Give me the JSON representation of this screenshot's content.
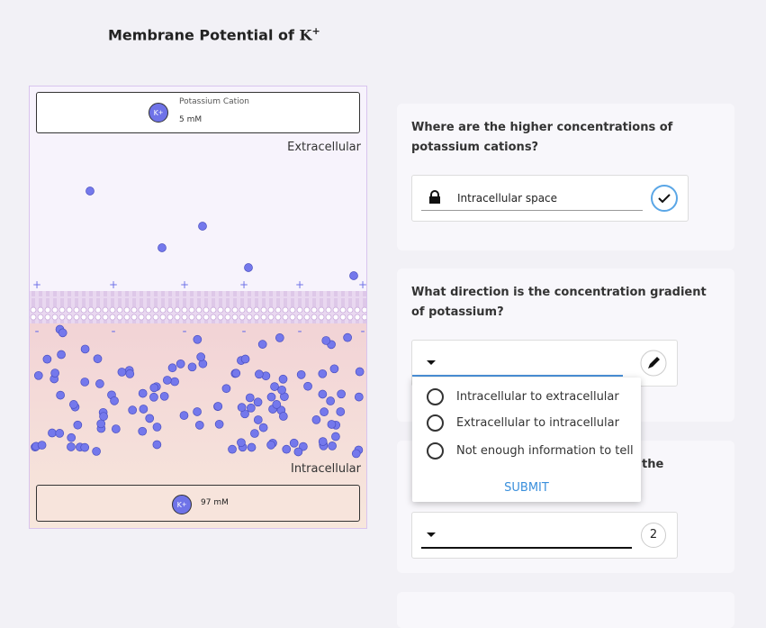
{
  "header": {
    "title": "Membrane Potential of",
    "ion": "K",
    "charge": "+"
  },
  "panel": {
    "top_label": "Potassium Cation",
    "top_conc": "5 mM",
    "outside": "Extracellular",
    "inside": "Intracellular",
    "bottom_conc": "97 mM",
    "plus": "+",
    "minus": "-"
  },
  "questions": [
    {
      "text": "Where are the higher concentrations of potassium cations?",
      "answer": "Intracellular space"
    },
    {
      "text": "What direction is the concentration gradient of potassium?",
      "options": [
        "Intracellular to extracellular",
        "Extracellular to intracellular",
        "Not enough information to tell"
      ],
      "submit": "SUBMIT"
    },
    {
      "text": "the",
      "badge": "2"
    }
  ]
}
